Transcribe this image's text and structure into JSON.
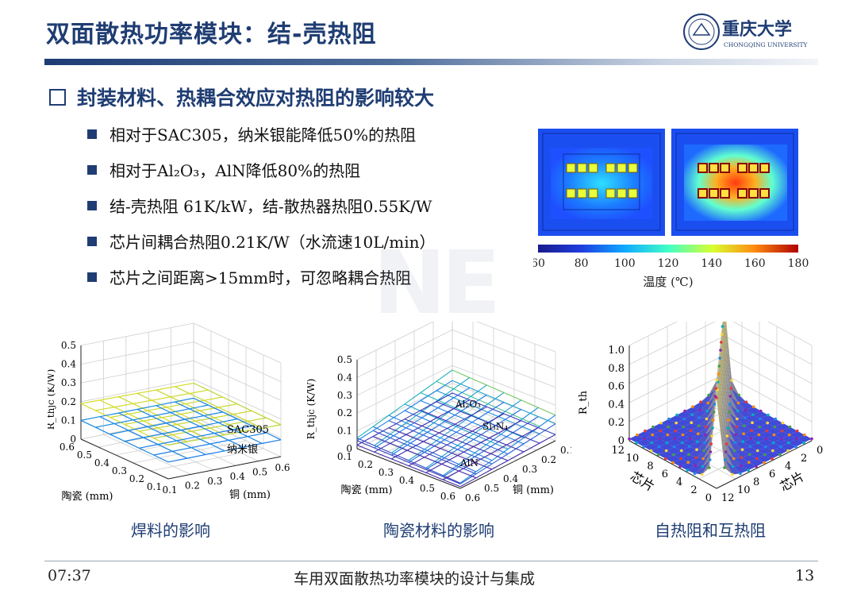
{
  "slide": {
    "title": "双面散热功率模块：结-壳热阻",
    "heading": "封装材料、热耦合效应对热阻的影响较大",
    "bullets": [
      "相对于SAC305，纳米银能降低50%的热阻",
      "相对于Al₂O₃，AlN降低80%的热阻",
      "结-壳热阻 61K/kW，结-散热器热阻0.55K/W",
      "芯片间耦合热阻0.21K/W（水流速10L/min）",
      "芯片之间距离>15mm时，可忽略耦合热阻"
    ],
    "logo": {
      "name": "重庆大学",
      "english": "CHONGQING UNIVERSITY"
    },
    "watermark": "NE"
  },
  "thermal_map": {
    "colorbar_ticks": [
      "60",
      "80",
      "100",
      "120",
      "140",
      "160",
      "180"
    ],
    "colorbar_label": "温度 (℃)"
  },
  "charts": {
    "solder": {
      "caption": "焊料的影响",
      "z_label": "R_thjc (K/W)",
      "z_ticks": [
        "0",
        "0.1",
        "0.2",
        "0.3",
        "0.4",
        "0.5"
      ],
      "x_label": "陶瓷 (mm)",
      "x_ticks": [
        "0.6",
        "0.5",
        "0.4",
        "0.3",
        "0.2",
        "0.1"
      ],
      "y_label": "铜 (mm)",
      "y_ticks": [
        "0.1",
        "0.2",
        "0.3",
        "0.4",
        "0.5",
        "0.6"
      ],
      "series": [
        "SAC305",
        "纳米银"
      ]
    },
    "ceramic": {
      "caption": "陶瓷材料的影响",
      "z_label": "R_thjc (K/W)",
      "z_ticks": [
        "0",
        "0.1",
        "0.2",
        "0.3",
        "0.4",
        "0.5"
      ],
      "x_label": "陶瓷 (mm)",
      "x_ticks": [
        "0.1",
        "0.2",
        "0.3",
        "0.4",
        "0.5",
        "0.6"
      ],
      "y_label": "铜 (mm)",
      "y_ticks": [
        "0.6",
        "0.5",
        "0.4",
        "0.3",
        "0.2",
        "0.1"
      ],
      "series": [
        "Al₂O₃",
        "Si₃N₄",
        "AlN"
      ]
    },
    "coupling": {
      "caption": "自热阻和互热阻",
      "z_label": "R_th",
      "z_ticks": [
        "0",
        "0.2",
        "0.4",
        "0.6",
        "0.8",
        "1.0"
      ],
      "x_label": "芯片",
      "x_ticks": [
        "0",
        "2",
        "4",
        "6",
        "8",
        "10",
        "12"
      ],
      "y_label": "芯片",
      "y_ticks": [
        "12",
        "10",
        "8",
        "6",
        "4",
        "2",
        "0"
      ]
    }
  },
  "footer": {
    "time": "07:37",
    "center": "车用双面散热功率模块的设计与集成",
    "page": "13"
  }
}
